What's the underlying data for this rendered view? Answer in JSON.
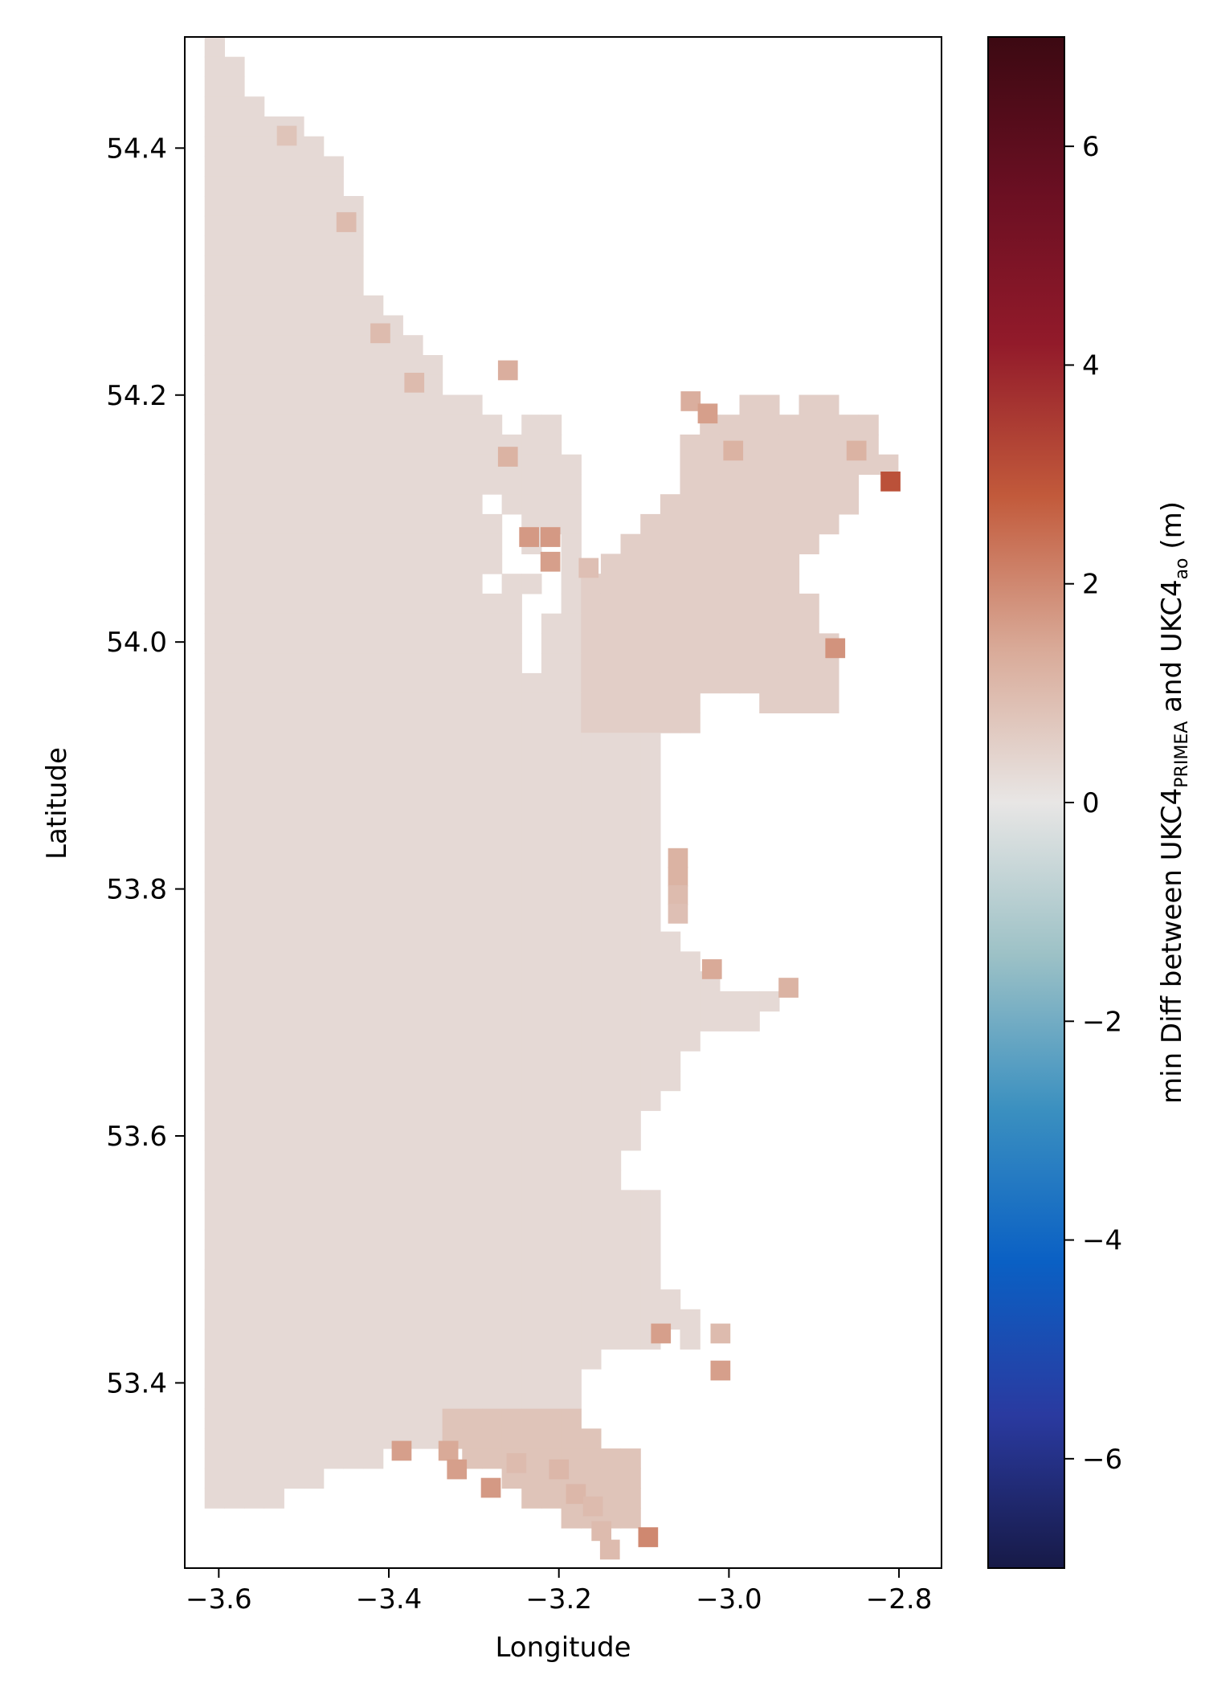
{
  "chart_data": {
    "type": "heatmap",
    "xlabel": "Longitude",
    "ylabel": "Latitude",
    "xlim": [
      -3.64,
      -2.75
    ],
    "ylim": [
      53.25,
      54.49
    ],
    "x_ticks": [
      -3.6,
      -3.4,
      -3.2,
      -3.0,
      -2.8
    ],
    "x_tick_labels": [
      "−3.6",
      "−3.4",
      "−3.2",
      "−3.0",
      "−2.8"
    ],
    "y_ticks": [
      53.4,
      53.6,
      53.8,
      54.0,
      54.2,
      54.4
    ],
    "y_tick_labels": [
      "53.4",
      "53.6",
      "53.8",
      "54.0",
      "54.2",
      "54.4"
    ],
    "grid": false,
    "cell_size_deg": {
      "lon": 0.0233,
      "lat": 0.0161
    },
    "base_value": 0.3,
    "colorbar": {
      "label_parts": {
        "prefix": "min Diff between UKC4",
        "sub1": "PRIMEA",
        "middle": " and UKC4",
        "sub2": "ao",
        "suffix": " (m)"
      },
      "range": [
        -7,
        7
      ],
      "ticks": [
        -6,
        -4,
        -2,
        0,
        2,
        4,
        6
      ],
      "tick_labels": [
        "−6",
        "−4",
        "−2",
        "0",
        "2",
        "4",
        "6"
      ],
      "colormap": "balance",
      "colors": [
        "#171a47",
        "#2a3aa0",
        "#0a60c4",
        "#3b90c0",
        "#9cc1c6",
        "#e8e6e5",
        "#d9aa98",
        "#c25a3b",
        "#921a2a",
        "#6a0f22",
        "#3c0912"
      ]
    },
    "highlight_cells": [
      {
        "lon": -3.52,
        "lat": 54.41,
        "value": 0.8
      },
      {
        "lon": -3.45,
        "lat": 54.34,
        "value": 1.0
      },
      {
        "lon": -3.41,
        "lat": 54.25,
        "value": 1.0
      },
      {
        "lon": -3.37,
        "lat": 54.21,
        "value": 1.0
      },
      {
        "lon": -3.26,
        "lat": 54.22,
        "value": 1.3
      },
      {
        "lon": -3.26,
        "lat": 54.15,
        "value": 1.2
      },
      {
        "lon": -3.045,
        "lat": 54.195,
        "value": 1.3
      },
      {
        "lon": -3.025,
        "lat": 54.185,
        "value": 1.6
      },
      {
        "lon": -2.995,
        "lat": 54.155,
        "value": 1.2
      },
      {
        "lon": -2.85,
        "lat": 54.155,
        "value": 1.2
      },
      {
        "lon": -2.81,
        "lat": 54.13,
        "value": 3.0
      },
      {
        "lon": -3.235,
        "lat": 54.085,
        "value": 1.7
      },
      {
        "lon": -3.21,
        "lat": 54.085,
        "value": 1.7
      },
      {
        "lon": -3.21,
        "lat": 54.065,
        "value": 1.6
      },
      {
        "lon": -3.165,
        "lat": 54.06,
        "value": 0.9
      },
      {
        "lon": -2.875,
        "lat": 53.995,
        "value": 1.8
      },
      {
        "lon": -3.06,
        "lat": 53.825,
        "value": 1.2
      },
      {
        "lon": -3.06,
        "lat": 53.81,
        "value": 1.2
      },
      {
        "lon": -3.06,
        "lat": 53.795,
        "value": 1.0
      },
      {
        "lon": -3.06,
        "lat": 53.78,
        "value": 0.9
      },
      {
        "lon": -3.02,
        "lat": 53.735,
        "value": 1.4
      },
      {
        "lon": -2.93,
        "lat": 53.72,
        "value": 1.2
      },
      {
        "lon": -3.08,
        "lat": 53.44,
        "value": 1.6
      },
      {
        "lon": -3.01,
        "lat": 53.44,
        "value": 1.0
      },
      {
        "lon": -3.01,
        "lat": 53.41,
        "value": 1.6
      },
      {
        "lon": -3.385,
        "lat": 53.345,
        "value": 1.6
      },
      {
        "lon": -3.33,
        "lat": 53.345,
        "value": 1.4
      },
      {
        "lon": -3.32,
        "lat": 53.33,
        "value": 1.6
      },
      {
        "lon": -3.28,
        "lat": 53.315,
        "value": 1.7
      },
      {
        "lon": -3.095,
        "lat": 53.275,
        "value": 2.0
      },
      {
        "lon": -3.2,
        "lat": 53.33,
        "value": 1.1
      },
      {
        "lon": -3.18,
        "lat": 53.31,
        "value": 1.1
      },
      {
        "lon": -3.16,
        "lat": 53.3,
        "value": 1.0
      },
      {
        "lon": -3.15,
        "lat": 53.28,
        "value": 1.0
      },
      {
        "lon": -3.14,
        "lat": 53.265,
        "value": 1.0
      },
      {
        "lon": -3.25,
        "lat": 53.335,
        "value": 1.0
      }
    ]
  }
}
